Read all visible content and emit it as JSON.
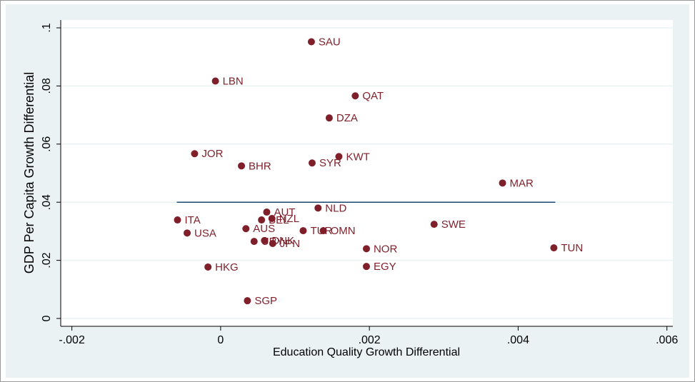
{
  "chart_data": {
    "type": "scatter",
    "xlabel": "Education Quality Growth Differential",
    "ylabel": "GDP Per Capita Growth Differential",
    "color": "#7f1f2a",
    "points": [
      {
        "label": "SAU",
        "x": 0.00122,
        "y": 0.0952
      },
      {
        "label": "LBN",
        "x": -7e-05,
        "y": 0.0817
      },
      {
        "label": "QAT",
        "x": 0.00181,
        "y": 0.0766
      },
      {
        "label": "DZA",
        "x": 0.00146,
        "y": 0.069
      },
      {
        "label": "JOR",
        "x": -0.00035,
        "y": 0.0567
      },
      {
        "label": "BHR",
        "x": 0.00028,
        "y": 0.0525
      },
      {
        "label": "SYR",
        "x": 0.00123,
        "y": 0.0535
      },
      {
        "label": "KWT",
        "x": 0.00159,
        "y": 0.0557
      },
      {
        "label": "MAR",
        "x": 0.00379,
        "y": 0.0466
      },
      {
        "label": "NLD",
        "x": 0.00131,
        "y": 0.038
      },
      {
        "label": "AUT",
        "x": 0.00062,
        "y": 0.0366
      },
      {
        "label": "ITA",
        "x": -0.00058,
        "y": 0.0339
      },
      {
        "label": "BEL",
        "x": 0.00055,
        "y": 0.0339
      },
      {
        "label": "NZL",
        "x": 0.00069,
        "y": 0.0344
      },
      {
        "label": "USA",
        "x": -0.00045,
        "y": 0.0294
      },
      {
        "label": "AUS",
        "x": 0.00034,
        "y": 0.0309
      },
      {
        "label": "TUR",
        "x": 0.00111,
        "y": 0.0302
      },
      {
        "label": "OMN",
        "x": 0.00138,
        "y": 0.0302
      },
      {
        "label": "SWE",
        "x": 0.00287,
        "y": 0.0324
      },
      {
        "label": "URY",
        "x": 0.00045,
        "y": 0.0265
      },
      {
        "label": "DNK",
        "x": 0.00059,
        "y": 0.0268
      },
      {
        "label": "JPN",
        "x": 0.0007,
        "y": 0.0258
      },
      {
        "label": "NOR",
        "x": 0.00196,
        "y": 0.024
      },
      {
        "label": "TUN",
        "x": 0.00448,
        "y": 0.0243
      },
      {
        "label": "HKG",
        "x": -0.00017,
        "y": 0.0177
      },
      {
        "label": "EGY",
        "x": 0.00196,
        "y": 0.0179
      },
      {
        "label": "SGP",
        "x": 0.00036,
        "y": 0.0061
      }
    ],
    "reference_line": {
      "y": 0.04,
      "x": [
        -0.00059,
        0.0045
      ],
      "color": "#1a476f"
    },
    "xlim": [
      -0.00215,
      0.00608
    ],
    "ylim": [
      -0.0027,
      0.1027
    ],
    "xticks": [
      {
        "value": -0.002,
        "label": "-.002"
      },
      0,
      {
        "value": 0.002,
        "label": ".002"
      },
      {
        "value": 0.004,
        "label": ".004"
      },
      {
        "value": 0.006,
        "label": ".006"
      }
    ],
    "yticks": [
      0,
      {
        "value": 0.02,
        "label": ".02"
      },
      {
        "value": 0.04,
        "label": ".04"
      },
      {
        "value": 0.06,
        "label": ".06"
      },
      {
        "value": 0.08,
        "label": ".08"
      },
      {
        "value": 0.1,
        "label": ".1"
      }
    ],
    "grid": true
  }
}
